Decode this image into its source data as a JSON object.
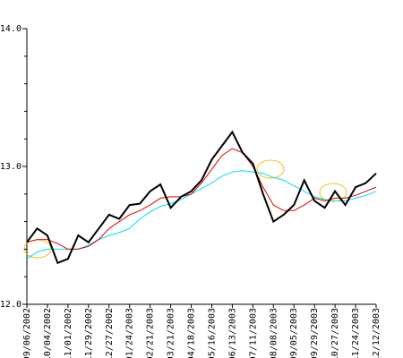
{
  "chart_data": {
    "type": "line",
    "categories": [
      "09/06/2002",
      null,
      "10/04/2002",
      null,
      "11/01/2002",
      null,
      "11/29/2002",
      null,
      "12/27/2002",
      null,
      "01/24/2003",
      null,
      "02/21/2003",
      null,
      "03/21/2003",
      null,
      "04/18/2003",
      null,
      "05/16/2003",
      null,
      "06/13/2003",
      null,
      "07/11/2003",
      null,
      "08/08/2003",
      null,
      "09/05/2003",
      null,
      "09/29/2003",
      null,
      "10/27/2003",
      null,
      "11/24/2003",
      null,
      "12/12/2003"
    ],
    "series": [
      {
        "color": "#00e0f0",
        "values": [
          12.33,
          12.38,
          12.4,
          12.4,
          12.4,
          12.4,
          12.43,
          12.47,
          12.5,
          12.52,
          12.55,
          12.62,
          12.67,
          12.71,
          12.73,
          12.76,
          12.8,
          12.84,
          12.88,
          12.93,
          12.96,
          12.97,
          12.96,
          12.95,
          12.92,
          12.9,
          12.86,
          12.82,
          12.78,
          12.76,
          12.75,
          12.75,
          12.77,
          12.79,
          12.82
        ]
      },
      {
        "color": "#e00000",
        "values": [
          12.45,
          12.47,
          12.47,
          12.44,
          12.4,
          12.4,
          12.42,
          12.47,
          12.55,
          12.6,
          12.65,
          12.68,
          12.72,
          12.77,
          12.78,
          12.78,
          12.8,
          12.88,
          12.98,
          13.08,
          13.13,
          13.1,
          13.0,
          12.85,
          12.72,
          12.68,
          12.68,
          12.72,
          12.77,
          12.75,
          12.77,
          12.77,
          12.79,
          12.82,
          12.85
        ]
      },
      {
        "color": "#000000",
        "values": [
          12.45,
          12.55,
          12.5,
          12.3,
          12.33,
          12.5,
          12.45,
          12.55,
          12.65,
          12.62,
          12.72,
          12.73,
          12.82,
          12.87,
          12.7,
          12.78,
          12.82,
          12.9,
          13.05,
          13.15,
          13.25,
          13.1,
          13.02,
          12.8,
          12.6,
          12.65,
          12.72,
          12.9,
          12.75,
          12.7,
          12.82,
          12.72,
          12.85,
          12.88,
          12.95
        ]
      }
    ],
    "ylim": [
      12,
      14
    ],
    "yticks": [
      {
        "value": 12,
        "label": "12.0"
      },
      {
        "value": 13,
        "label": "13.0"
      },
      {
        "value": 14,
        "label": "14.0"
      }
    ],
    "minor_yticks": [
      12.2,
      12.4,
      12.6,
      12.8,
      13.2,
      13.4,
      13.6,
      13.8
    ]
  }
}
